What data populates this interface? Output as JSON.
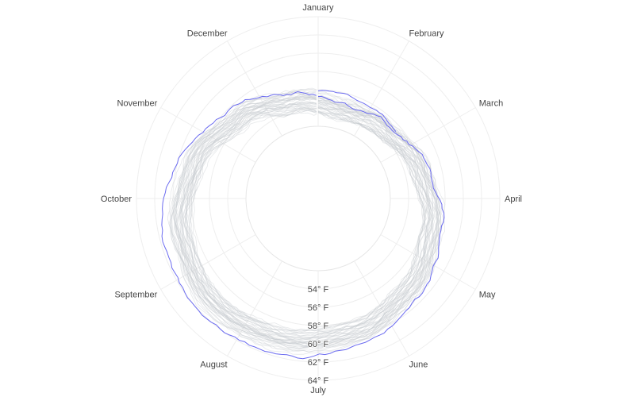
{
  "chart_data": {
    "type": "line",
    "subtype": "polar",
    "angular_axis": {
      "direction": "clockwise",
      "rotation_start": "top",
      "tick_labels": [
        "January",
        "February",
        "March",
        "April",
        "May",
        "June",
        "July",
        "August",
        "September",
        "October",
        "November",
        "December"
      ]
    },
    "radial_axis": {
      "range": [
        52,
        64
      ],
      "tick_values": [
        54,
        56,
        58,
        60,
        62,
        64
      ],
      "tick_labels": [
        "54° F",
        "56° F",
        "58° F",
        "60° F",
        "62° F",
        "64° F"
      ],
      "angle": "bottom"
    },
    "grid": true,
    "legend": "none",
    "series": [
      {
        "role": "historical years",
        "color": "#c8ccd0",
        "count": 40,
        "monthly_mean": [
          54.2,
          54.6,
          55.8,
          57.0,
          58.2,
          59.3,
          60.0,
          60.3,
          59.6,
          58.3,
          56.5,
          55.0
        ]
      },
      {
        "role": "highlighted year",
        "color": "#6b6bf0",
        "monthly_values": [
          54.6,
          55.2,
          56.6,
          58.0,
          59.4,
          60.6,
          61.6,
          62.0,
          61.4,
          60.0,
          57.8,
          56.0
        ]
      },
      {
        "role": "highlighted year (continued)",
        "color": "#6b6bf0",
        "monthly_values": [
          55.9,
          55.4
        ]
      }
    ]
  }
}
